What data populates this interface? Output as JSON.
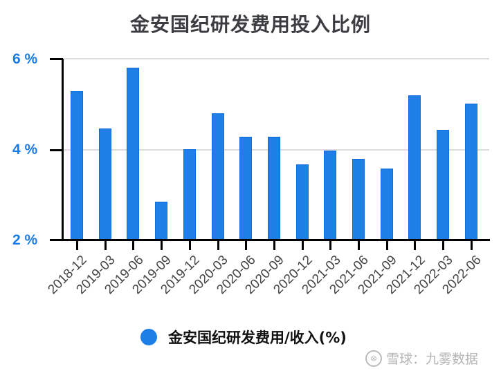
{
  "chart_data": {
    "type": "bar",
    "title": "金安国纪研发费用投入比例",
    "xlabel": "",
    "ylabel": "",
    "ylim": [
      2,
      6
    ],
    "yticks": [
      "2 %",
      "4 %",
      "6 %"
    ],
    "grid": true,
    "legend_position": "bottom",
    "categories": [
      "2018-12",
      "2019-03",
      "2019-06",
      "2019-09",
      "2019-12",
      "2020-03",
      "2020-06",
      "2020-09",
      "2020-12",
      "2021-03",
      "2021-06",
      "2021-09",
      "2021-12",
      "2022-03",
      "2022-06"
    ],
    "series": [
      {
        "name": "金安国纪研发费用/收入(%)",
        "color": "#1e7fe6",
        "values": [
          5.28,
          4.46,
          5.8,
          2.84,
          4.0,
          4.79,
          4.27,
          4.27,
          3.66,
          3.97,
          3.79,
          3.57,
          5.19,
          4.43,
          5.01
        ]
      }
    ]
  },
  "title": "金安国纪研发费用投入比例",
  "yaxis": {
    "ticks": [
      {
        "label": "6 %",
        "value": 6
      },
      {
        "label": "4 %",
        "value": 4
      },
      {
        "label": "2 %",
        "value": 2
      }
    ]
  },
  "legend": {
    "label": "金安国纪研发费用/收入(%)"
  },
  "watermark": {
    "logo": "⊗",
    "text": "雪球：九雾数据"
  }
}
